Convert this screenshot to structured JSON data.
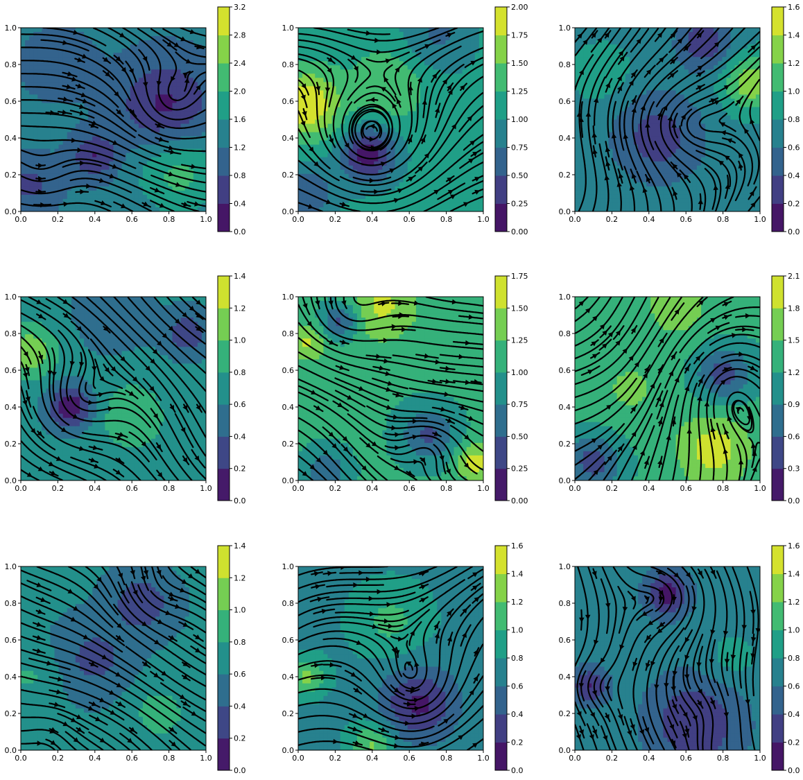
{
  "chart_data": [
    {
      "type": "streamplot",
      "xlim": [
        0,
        1
      ],
      "ylim": [
        0,
        1
      ],
      "xticks": [
        "0.0",
        "0.2",
        "0.4",
        "0.6",
        "0.8",
        "1.0"
      ],
      "yticks": [
        "0.0",
        "0.2",
        "0.4",
        "0.6",
        "0.8",
        "1.0"
      ],
      "colorbar": {
        "ticks": [
          "0.0",
          "0.4",
          "0.8",
          "1.2",
          "1.6",
          "2.0",
          "2.4",
          "2.8",
          "3.2"
        ],
        "min": 0,
        "max": 3.2
      },
      "magnitude_field": {
        "base": 1.3,
        "blobs": [
          [
            0.78,
            0.57,
            0.25,
            -1.0
          ],
          [
            0.4,
            0.3,
            0.12,
            -0.9
          ],
          [
            0.85,
            0.22,
            0.22,
            0.9
          ],
          [
            0.2,
            0.8,
            0.18,
            -0.4
          ],
          [
            0.05,
            0.15,
            0.15,
            -0.6
          ]
        ]
      },
      "vortices": [
        [
          0.8,
          0.57,
          0.2,
          1.2
        ],
        [
          0.1,
          0.18,
          0.18,
          0.8
        ]
      ],
      "flow": [
        0.55,
        -0.15
      ]
    },
    {
      "type": "streamplot",
      "xlim": [
        0,
        1
      ],
      "ylim": [
        0,
        1
      ],
      "xticks": [
        "0.0",
        "0.2",
        "0.4",
        "0.6",
        "0.8",
        "1.0"
      ],
      "yticks": [
        "0.0",
        "0.2",
        "0.4",
        "0.6",
        "0.8",
        "1.0"
      ],
      "colorbar": {
        "ticks": [
          "0.00",
          "0.25",
          "0.50",
          "0.75",
          "1.00",
          "1.25",
          "1.50",
          "1.75",
          "2.00"
        ],
        "min": 0,
        "max": 2.0
      },
      "magnitude_field": {
        "base": 1.1,
        "blobs": [
          [
            0.05,
            0.58,
            0.18,
            0.9
          ],
          [
            0.38,
            0.31,
            0.15,
            -1.0
          ],
          [
            0.5,
            0.7,
            0.2,
            0.4
          ],
          [
            0.75,
            0.95,
            0.2,
            -0.4
          ],
          [
            0.05,
            0.1,
            0.15,
            -0.6
          ]
        ]
      },
      "vortices": [
        [
          0.38,
          0.32,
          0.35,
          1.3
        ]
      ],
      "flow": [
        0.45,
        0.05
      ]
    },
    {
      "type": "streamplot",
      "xlim": [
        0,
        1
      ],
      "ylim": [
        0,
        1
      ],
      "xticks": [
        "0.0",
        "0.2",
        "0.4",
        "0.6",
        "0.8",
        "1.0"
      ],
      "yticks": [
        "0.0",
        "0.2",
        "0.4",
        "0.6",
        "0.8",
        "1.0"
      ],
      "colorbar": {
        "ticks": [
          "0.0",
          "0.2",
          "0.4",
          "0.6",
          "0.8",
          "1.0",
          "1.2",
          "1.4",
          "1.6"
        ],
        "min": 0,
        "max": 1.6
      },
      "magnitude_field": {
        "base": 0.75,
        "blobs": [
          [
            0.45,
            0.4,
            0.25,
            -0.45
          ],
          [
            0.95,
            0.7,
            0.15,
            0.6
          ],
          [
            0.7,
            0.92,
            0.15,
            -0.5
          ],
          [
            0.15,
            0.75,
            0.15,
            0.2
          ]
        ]
      },
      "vortices": [
        [
          0.45,
          0.45,
          0.35,
          -1.0
        ]
      ],
      "flow": [
        0.1,
        0.4
      ]
    },
    {
      "type": "streamplot",
      "xlim": [
        0,
        1
      ],
      "ylim": [
        0,
        1
      ],
      "xticks": [
        "0.0",
        "0.2",
        "0.4",
        "0.6",
        "0.8",
        "1.0"
      ],
      "yticks": [
        "0.0",
        "0.2",
        "0.4",
        "0.6",
        "0.8",
        "1.0"
      ],
      "colorbar": {
        "ticks": [
          "0.0",
          "0.2",
          "0.4",
          "0.6",
          "0.8",
          "1.0",
          "1.2",
          "1.4"
        ],
        "min": 0,
        "max": 1.4
      },
      "magnitude_field": {
        "base": 0.65,
        "blobs": [
          [
            0.27,
            0.4,
            0.12,
            -0.6
          ],
          [
            0.05,
            0.7,
            0.15,
            0.5
          ],
          [
            0.6,
            0.35,
            0.2,
            0.3
          ],
          [
            0.9,
            0.8,
            0.12,
            -0.4
          ],
          [
            0.5,
            0.9,
            0.2,
            -0.2
          ]
        ]
      },
      "vortices": [
        [
          0.27,
          0.4,
          0.3,
          1.1
        ]
      ],
      "flow": [
        0.35,
        -0.35
      ]
    },
    {
      "type": "streamplot",
      "xlim": [
        0,
        1
      ],
      "ylim": [
        0,
        1
      ],
      "xticks": [
        "0.0",
        "0.2",
        "0.4",
        "0.6",
        "0.8",
        "1.0"
      ],
      "yticks": [
        "0.0",
        "0.2",
        "0.4",
        "0.6",
        "0.8",
        "1.0"
      ],
      "colorbar": {
        "ticks": [
          "0.00",
          "0.25",
          "0.50",
          "0.75",
          "1.00",
          "1.25",
          "1.50",
          "1.75"
        ],
        "min": 0,
        "max": 1.75
      },
      "magnitude_field": {
        "base": 1.05,
        "blobs": [
          [
            0.23,
            0.87,
            0.1,
            -0.7
          ],
          [
            0.45,
            0.95,
            0.2,
            0.5
          ],
          [
            0.05,
            0.75,
            0.1,
            0.5
          ],
          [
            0.7,
            0.25,
            0.15,
            -0.6
          ],
          [
            0.95,
            0.1,
            0.1,
            0.6
          ],
          [
            0.15,
            0.05,
            0.12,
            -0.5
          ]
        ]
      },
      "vortices": [
        [
          0.23,
          0.87,
          0.25,
          1.0
        ],
        [
          0.72,
          0.22,
          0.2,
          -0.7
        ]
      ],
      "flow": [
        0.45,
        -0.2
      ]
    },
    {
      "type": "streamplot",
      "xlim": [
        0,
        1
      ],
      "ylim": [
        0,
        1
      ],
      "xticks": [
        "0.0",
        "0.2",
        "0.4",
        "0.6",
        "0.8",
        "1.0"
      ],
      "yticks": [
        "0.0",
        "0.2",
        "0.4",
        "0.6",
        "0.8",
        "1.0"
      ],
      "colorbar": {
        "ticks": [
          "0.0",
          "0.3",
          "0.6",
          "0.9",
          "1.2",
          "1.5",
          "1.8",
          "2.1"
        ],
        "min": 0,
        "max": 2.1
      },
      "magnitude_field": {
        "base": 1.25,
        "blobs": [
          [
            0.8,
            0.58,
            0.15,
            -0.8
          ],
          [
            0.75,
            0.17,
            0.2,
            0.7
          ],
          [
            0.1,
            0.1,
            0.15,
            -0.8
          ],
          [
            0.55,
            0.95,
            0.2,
            0.4
          ],
          [
            0.3,
            0.5,
            0.2,
            0.3
          ]
        ]
      },
      "vortices": [
        [
          0.8,
          0.58,
          0.35,
          -1.1
        ]
      ],
      "flow": [
        0.3,
        0.25
      ]
    },
    {
      "type": "streamplot",
      "xlim": [
        0,
        1
      ],
      "ylim": [
        0,
        1
      ],
      "xticks": [
        "0.0",
        "0.2",
        "0.4",
        "0.6",
        "0.8",
        "1.0"
      ],
      "yticks": [
        "0.0",
        "0.2",
        "0.4",
        "0.6",
        "0.8",
        "1.0"
      ],
      "colorbar": {
        "ticks": [
          "0.0",
          "0.2",
          "0.4",
          "0.6",
          "0.8",
          "1.0",
          "1.2",
          "1.4"
        ],
        "min": 0,
        "max": 1.4
      },
      "magnitude_field": {
        "base": 0.62,
        "blobs": [
          [
            0.65,
            0.8,
            0.15,
            -0.4
          ],
          [
            0.4,
            0.5,
            0.18,
            -0.3
          ],
          [
            0.75,
            0.2,
            0.15,
            0.3
          ],
          [
            0.05,
            0.4,
            0.15,
            0.2
          ]
        ]
      },
      "vortices": [
        [
          0.7,
          0.85,
          0.2,
          0.7
        ],
        [
          0.15,
          0.1,
          0.15,
          -0.5
        ]
      ],
      "flow": [
        0.5,
        -0.3
      ]
    },
    {
      "type": "streamplot",
      "xlim": [
        0,
        1
      ],
      "ylim": [
        0,
        1
      ],
      "xticks": [
        "0.0",
        "0.2",
        "0.4",
        "0.6",
        "0.8",
        "1.0"
      ],
      "yticks": [
        "0.0",
        "0.2",
        "0.4",
        "0.6",
        "0.8",
        "1.0"
      ],
      "colorbar": {
        "ticks": [
          "0.0",
          "0.2",
          "0.4",
          "0.6",
          "0.8",
          "1.0",
          "1.2",
          "1.4",
          "1.6"
        ],
        "min": 0,
        "max": 1.6
      },
      "magnitude_field": {
        "base": 0.75,
        "blobs": [
          [
            0.65,
            0.25,
            0.2,
            -0.6
          ],
          [
            0.05,
            0.4,
            0.1,
            0.5
          ],
          [
            0.5,
            0.7,
            0.2,
            0.3
          ],
          [
            0.4,
            0.03,
            0.12,
            0.5
          ]
        ]
      },
      "vortices": [
        [
          0.65,
          0.25,
          0.3,
          1.0
        ]
      ],
      "flow": [
        0.45,
        0.15
      ]
    },
    {
      "type": "streamplot",
      "xlim": [
        0,
        1
      ],
      "ylim": [
        0,
        1
      ],
      "xticks": [
        "0.0",
        "0.2",
        "0.4",
        "0.6",
        "0.8",
        "1.0"
      ],
      "yticks": [
        "0.0",
        "0.2",
        "0.4",
        "0.6",
        "0.8",
        "1.0"
      ],
      "colorbar": {
        "ticks": [
          "0.0",
          "0.2",
          "0.4",
          "0.6",
          "0.8",
          "1.0",
          "1.2",
          "1.4",
          "1.6"
        ],
        "min": 0,
        "max": 1.6
      },
      "magnitude_field": {
        "base": 0.7,
        "blobs": [
          [
            0.5,
            0.85,
            0.12,
            -0.6
          ],
          [
            0.08,
            0.35,
            0.1,
            -0.5
          ],
          [
            0.65,
            0.15,
            0.25,
            -0.5
          ],
          [
            0.85,
            0.5,
            0.15,
            0.2
          ]
        ]
      },
      "vortices": [
        [
          0.5,
          0.85,
          0.2,
          -0.9
        ],
        [
          0.07,
          0.35,
          0.15,
          0.7
        ],
        [
          0.75,
          0.2,
          0.2,
          -0.5
        ]
      ],
      "flow": [
        0.05,
        -0.5
      ]
    }
  ]
}
